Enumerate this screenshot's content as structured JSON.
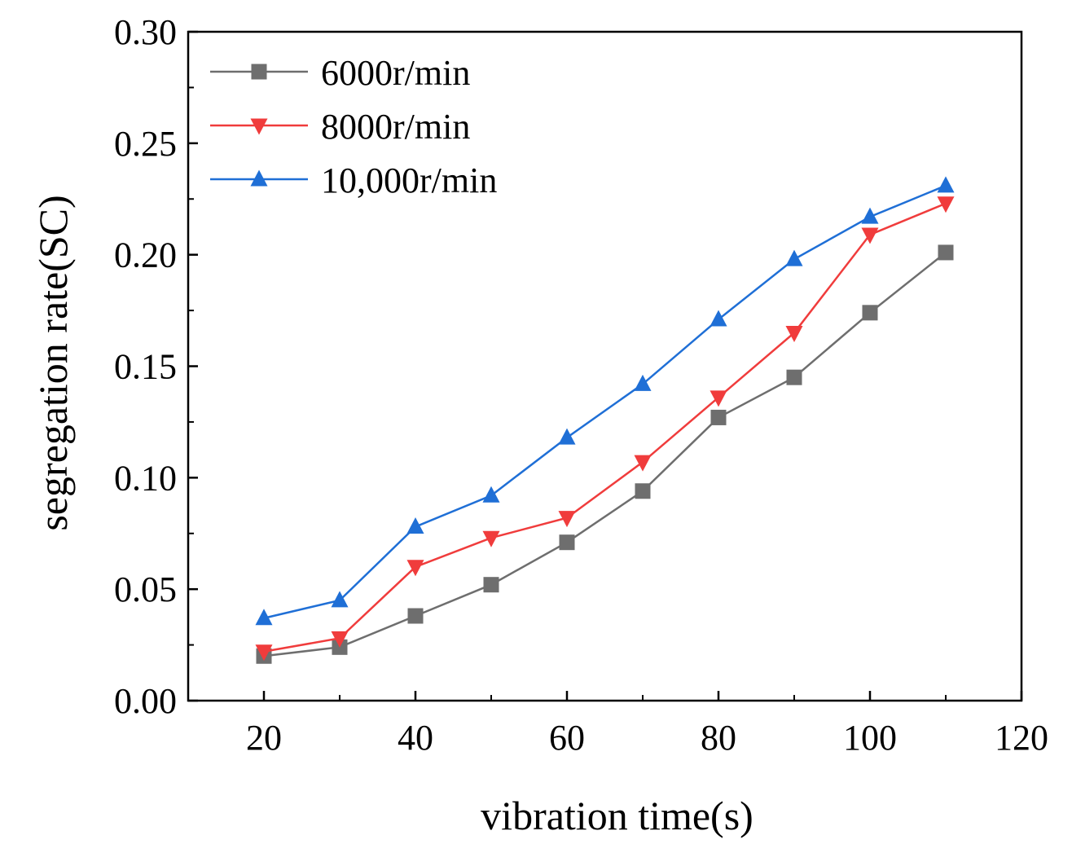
{
  "chart_data": {
    "type": "line",
    "title": "",
    "xlabel": "vibration time(s)",
    "ylabel": "segregation rate(SC)",
    "xlim": [
      10,
      120
    ],
    "ylim": [
      0,
      0.3
    ],
    "x_ticks": [
      20,
      40,
      60,
      80,
      100,
      120
    ],
    "x_tick_labels": [
      "20",
      "40",
      "60",
      "80",
      "100",
      "120"
    ],
    "y_ticks": [
      0,
      0.05,
      0.1,
      0.15,
      0.2,
      0.25,
      0.3
    ],
    "y_tick_labels": [
      "0.00",
      "0.05",
      "0.10",
      "0.15",
      "0.20",
      "0.25",
      "0.30"
    ],
    "grid": false,
    "legend_position": "top-left",
    "x": [
      20,
      30,
      40,
      50,
      60,
      70,
      80,
      90,
      100,
      110
    ],
    "series": [
      {
        "name": "6000r/min",
        "color": "#6e6e6e",
        "marker": "square",
        "values": [
          0.02,
          0.024,
          0.038,
          0.052,
          0.071,
          0.094,
          0.127,
          0.145,
          0.174,
          0.201
        ]
      },
      {
        "name": "8000r/min",
        "color": "#f03c3c",
        "marker": "triangle-down",
        "values": [
          0.022,
          0.028,
          0.06,
          0.073,
          0.082,
          0.107,
          0.136,
          0.165,
          0.209,
          0.223
        ]
      },
      {
        "name": "10,000r/min",
        "color": "#1f6fd6",
        "marker": "triangle-up",
        "values": [
          0.037,
          0.045,
          0.078,
          0.092,
          0.118,
          0.142,
          0.171,
          0.198,
          0.217,
          0.231
        ]
      }
    ]
  }
}
